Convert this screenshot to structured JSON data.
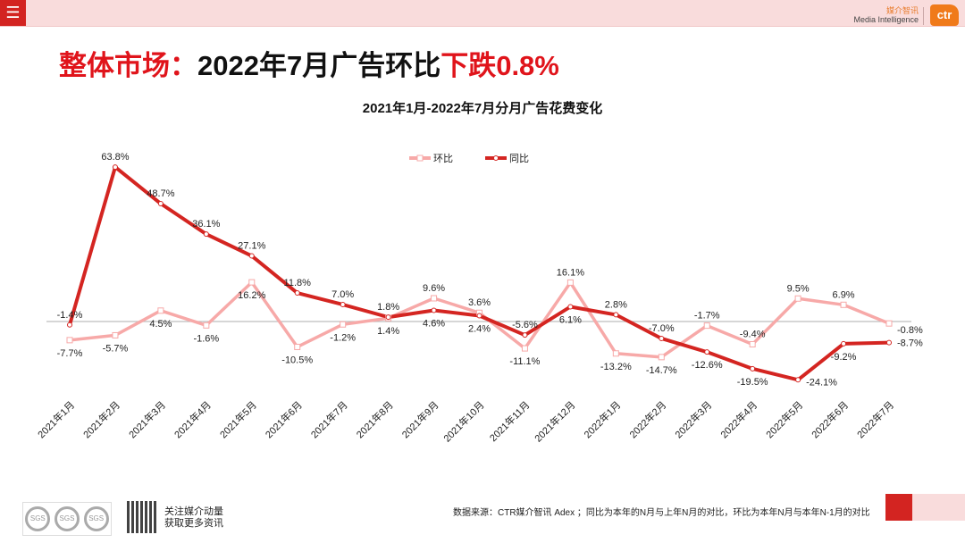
{
  "header": {
    "menu_icon": "hamburger-icon",
    "brand_cn": "媒介智讯",
    "brand_en": "Media Intelligence",
    "logo_text": "ctr"
  },
  "headline": {
    "prefix": "整体市场：",
    "middle": "2022年7月广告环比",
    "highlight": "下跌0.8%"
  },
  "colors": {
    "accent": "#d32421",
    "mom": "#f7a9a8",
    "yoy": "#d42521",
    "highlight": "#e0141b"
  },
  "chart_data": {
    "type": "line",
    "title": "2021年1月-2022年7月分月广告花费变化",
    "xlabel": "",
    "ylabel": "",
    "ylim": [
      -30,
      70
    ],
    "legend_position": "top-right",
    "categories": [
      "2021年1月",
      "2021年2月",
      "2021年3月",
      "2021年4月",
      "2021年5月",
      "2021年6月",
      "2021年7月",
      "2021年8月",
      "2021年9月",
      "2021年10月",
      "2021年11月",
      "2021年12月",
      "2022年1月",
      "2022年2月",
      "2022年3月",
      "2022年4月",
      "2022年5月",
      "2022年6月",
      "2022年7月"
    ],
    "series": [
      {
        "name": "环比",
        "values": [
          -7.7,
          -5.7,
          4.5,
          -1.6,
          16.2,
          -10.5,
          -1.2,
          1.4,
          9.6,
          3.6,
          -11.1,
          16.1,
          -13.2,
          -14.7,
          -1.7,
          -9.4,
          9.5,
          6.9,
          -0.8
        ],
        "labels": [
          "-7.7%",
          "-5.7%",
          "4.5%",
          "-1.6%",
          "16.2%",
          "-10.5%",
          "-1.2%",
          "1.4%",
          "9.6%",
          "3.6%",
          "-11.1%",
          "16.1%",
          "-13.2%",
          "-14.7%",
          "-1.7%",
          "-9.4%",
          "9.5%",
          "6.9%",
          "-0.8%"
        ]
      },
      {
        "name": "同比",
        "values": [
          -1.4,
          63.8,
          48.7,
          36.1,
          27.1,
          11.8,
          7.0,
          1.8,
          4.6,
          2.4,
          -5.6,
          6.1,
          2.8,
          -7.0,
          -12.6,
          -19.5,
          -24.1,
          -9.2,
          -8.7
        ],
        "labels": [
          "-1.4%",
          "63.8%",
          "48.7%",
          "36.1%",
          "27.1%",
          "11.8%",
          "7.0%",
          "1.8%",
          "4.6%",
          "2.4%",
          "-5.6%",
          "6.1%",
          "2.8%",
          "-7.0%",
          "-12.6%",
          "-19.5%",
          "-24.1%",
          "-9.2%",
          "-8.7%"
        ]
      }
    ]
  },
  "footer": {
    "badge_text": "SGS",
    "qr_line1": "关注媒介动量",
    "qr_line2": "获取更多资讯",
    "source": "数据来源：CTR媒介智讯 Adex ；同比为本年的N月与上年N月的对比，环比为本年N月与本年N-1月的对比"
  }
}
